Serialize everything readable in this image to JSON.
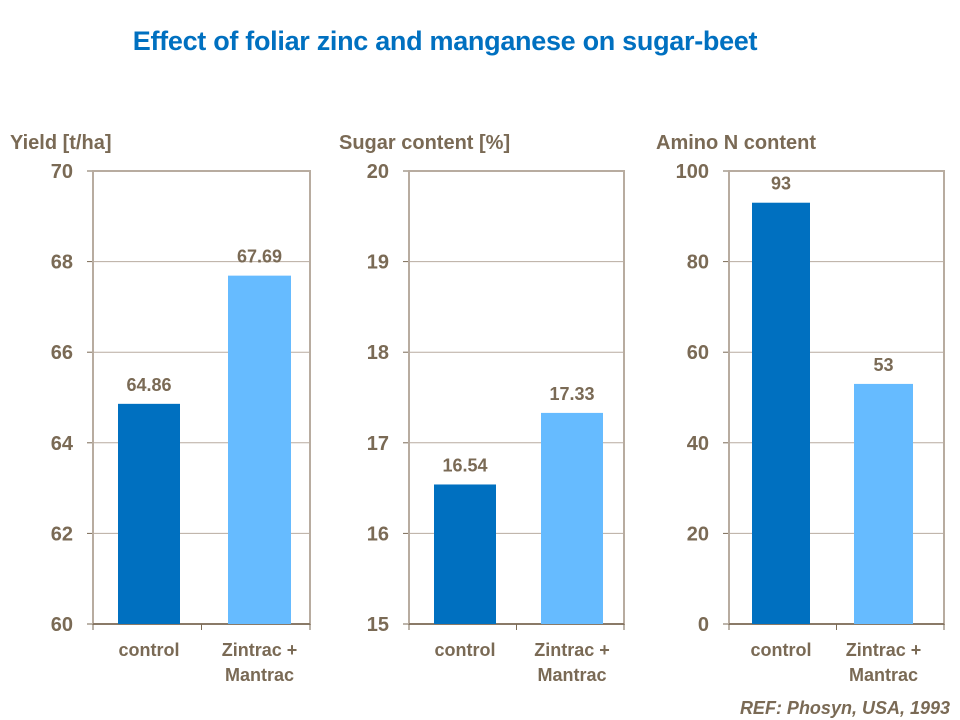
{
  "title": "Effect of foliar zinc and manganese on sugar-beet",
  "reference": "REF: Phosyn, USA, 1993",
  "colors": {
    "title": "#0070c0",
    "text": "#7a6a55",
    "control": "#0070c0",
    "treatment": "#66bbff",
    "frame": "#b8aca0"
  },
  "chart_data": [
    {
      "type": "bar",
      "title": "Yield [t/ha]",
      "categories": [
        "control",
        "Zintrac +\nMantrac"
      ],
      "values": [
        64.86,
        67.69
      ],
      "labels": [
        "64.86",
        "67.69"
      ],
      "ylim": [
        60,
        70
      ],
      "yticks": [
        "60",
        "62",
        "64",
        "66",
        "68",
        "70"
      ],
      "grid": true
    },
    {
      "type": "bar",
      "title": "Sugar content [%]",
      "categories": [
        "control",
        "Zintrac +\nMantrac"
      ],
      "values": [
        16.54,
        17.33
      ],
      "labels": [
        "16.54",
        "17.33"
      ],
      "ylim": [
        15,
        20
      ],
      "yticks": [
        "15",
        "16",
        "17",
        "18",
        "19",
        "20"
      ],
      "grid": true
    },
    {
      "type": "bar",
      "title": "Amino N content",
      "categories": [
        "control",
        "Zintrac +\nMantrac"
      ],
      "values": [
        93,
        53
      ],
      "labels": [
        "93",
        "53"
      ],
      "ylim": [
        0,
        100
      ],
      "yticks": [
        "0",
        "20",
        "40",
        "60",
        "80",
        "100"
      ],
      "grid": true
    }
  ]
}
